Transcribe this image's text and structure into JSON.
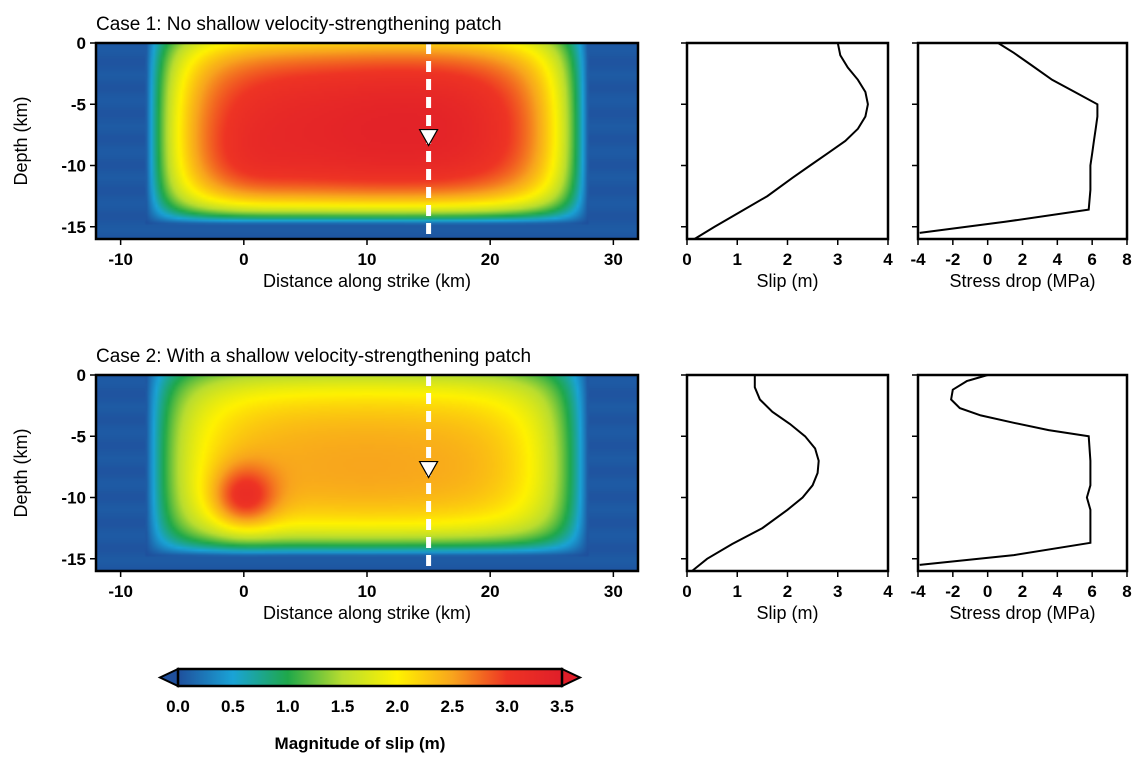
{
  "colorscale": {
    "stops": [
      {
        "value": 0.0,
        "color": "#1f4f9c"
      },
      {
        "value": 0.5,
        "color": "#1aa3d6"
      },
      {
        "value": 1.0,
        "color": "#1fa84a"
      },
      {
        "value": 1.5,
        "color": "#b9dd2f"
      },
      {
        "value": 2.0,
        "color": "#fff200"
      },
      {
        "value": 2.5,
        "color": "#f8a51d"
      },
      {
        "value": 3.0,
        "color": "#ee3424"
      },
      {
        "value": 3.5,
        "color": "#e01e29"
      }
    ],
    "min": 0.0,
    "max": 3.5,
    "ticks": [
      "0.0",
      "0.5",
      "1.0",
      "1.5",
      "2.0",
      "2.5",
      "3.0",
      "3.5"
    ],
    "title": "Magnitude of slip (m)"
  },
  "chart_data": [
    {
      "type": "heatmap",
      "title": "Case 1: No shallow velocity-strengthening patch",
      "xlabel": "Distance along strike (km)",
      "ylabel": "Depth (km)",
      "xlim": [
        -12,
        32
      ],
      "ylim": [
        -16,
        0
      ],
      "xticks": [
        -10,
        0,
        10,
        20,
        30
      ],
      "yticks": [
        0,
        -5,
        -10,
        -15
      ],
      "profile_line_x": 15,
      "hypocenter": {
        "x": 15,
        "y": -7.8
      },
      "field": {
        "peak": 3.45,
        "surface": 2.2,
        "edge_decay": 3.0,
        "bottom_decay": 1.8,
        "bumps": [
          {
            "x": 0,
            "y": -10,
            "r": 2.5,
            "dv": 0.1
          },
          {
            "x": 15,
            "y": -6,
            "r": 5,
            "dv": 0.1
          }
        ]
      }
    },
    {
      "type": "line",
      "xlabel": "Slip (m)",
      "ylabel": "",
      "xlim": [
        0,
        4
      ],
      "ylim": [
        -16,
        0
      ],
      "xticks": [
        0,
        1,
        2,
        3,
        4
      ],
      "series": [
        {
          "x": [
            3.0,
            3.05,
            3.2,
            3.4,
            3.55,
            3.6,
            3.55,
            3.4,
            3.15,
            2.8,
            2.45,
            2.1,
            1.6,
            1.05,
            0.55,
            0.15
          ],
          "y": [
            0,
            -1,
            -2,
            -3,
            -4,
            -5,
            -6,
            -7,
            -8,
            -9,
            -10,
            -11,
            -12.5,
            -13.8,
            -15,
            -16
          ]
        }
      ]
    },
    {
      "type": "line",
      "xlabel": "Stress drop (MPa)",
      "ylabel": "",
      "xlim": [
        -4,
        8
      ],
      "ylim": [
        -16,
        0
      ],
      "xticks": [
        -4,
        -2,
        0,
        2,
        4,
        6,
        8
      ],
      "series": [
        {
          "x": [
            0.6,
            1.5,
            2.5,
            3.7,
            5.0,
            6.3,
            6.3,
            6.2,
            6.1,
            6.0,
            5.9,
            5.9,
            5.8,
            1.0,
            -3.9
          ],
          "y": [
            0,
            -0.8,
            -1.8,
            -3.0,
            -4.0,
            -5.0,
            -6,
            -7,
            -8,
            -9,
            -10,
            -12,
            -13.6,
            -14.6,
            -15.5
          ]
        }
      ]
    },
    {
      "type": "heatmap",
      "title": "Case 2: With a shallow velocity-strengthening patch",
      "xlabel": "Distance along strike (km)",
      "ylabel": "Depth (km)",
      "xlim": [
        -12,
        32
      ],
      "ylim": [
        -16,
        0
      ],
      "xticks": [
        -10,
        0,
        10,
        20,
        30
      ],
      "yticks": [
        0,
        -5,
        -10,
        -15
      ],
      "profile_line_x": 15,
      "hypocenter": {
        "x": 15,
        "y": -7.8
      },
      "field": {
        "peak": 2.6,
        "surface": 1.5,
        "edge_decay": 3.0,
        "bottom_decay": 1.8,
        "bumps": [
          {
            "x": 0,
            "y": -10,
            "r": 1.8,
            "dv": 0.9
          }
        ]
      }
    },
    {
      "type": "line",
      "xlabel": "Slip (m)",
      "ylabel": "",
      "xlim": [
        0,
        4
      ],
      "ylim": [
        -16,
        0
      ],
      "xticks": [
        0,
        1,
        2,
        3,
        4
      ],
      "series": [
        {
          "x": [
            1.35,
            1.35,
            1.45,
            1.7,
            2.05,
            2.35,
            2.55,
            2.62,
            2.6,
            2.5,
            2.3,
            2.0,
            1.5,
            0.9,
            0.4,
            0.1
          ],
          "y": [
            0,
            -1,
            -2,
            -3,
            -4,
            -5,
            -6,
            -7,
            -8,
            -9,
            -10,
            -11,
            -12.5,
            -13.8,
            -15,
            -16
          ]
        }
      ]
    },
    {
      "type": "line",
      "xlabel": "Stress drop (MPa)",
      "ylabel": "",
      "xlim": [
        -4,
        8
      ],
      "ylim": [
        -16,
        0
      ],
      "xticks": [
        -4,
        -2,
        0,
        2,
        4,
        6,
        8
      ],
      "series": [
        {
          "x": [
            0,
            -1.2,
            -2.0,
            -2.1,
            -1.6,
            -0.4,
            1.5,
            3.5,
            5.8,
            5.9,
            5.9,
            5.7,
            5.9,
            5.9,
            1.5,
            -3.9
          ],
          "y": [
            0,
            -0.5,
            -1.2,
            -2.0,
            -2.7,
            -3.3,
            -3.9,
            -4.5,
            -5.0,
            -7,
            -9,
            -10,
            -11,
            -13.7,
            -14.7,
            -15.5
          ]
        }
      ]
    }
  ]
}
